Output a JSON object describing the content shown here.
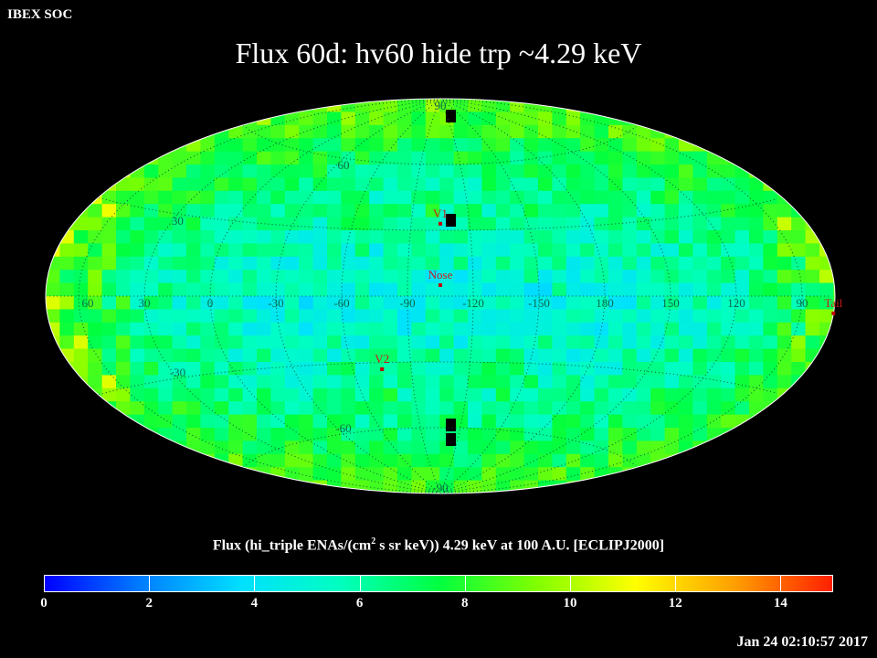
{
  "header": {
    "label": "IBEX SOC"
  },
  "map": {
    "title": "Flux   60d: hv60 hide trp ~4.29 keV",
    "projection": "aitoff",
    "lon_labels": [
      "60",
      "30",
      "0",
      "-30",
      "-60",
      "-90",
      "-120",
      "-150",
      "180",
      "150",
      "120",
      "90"
    ],
    "lat_labels": [
      "90",
      "60",
      "30",
      "-30",
      "-60",
      "-90"
    ],
    "markers": [
      {
        "label": "V1",
        "lon": -105,
        "lat": 33
      },
      {
        "label": "Nose",
        "lon": -105,
        "lat": 5
      },
      {
        "label": "V2",
        "lon": -75,
        "lat": -33
      },
      {
        "label": "Tail",
        "lon": 75,
        "lat": -5
      }
    ]
  },
  "colorbar": {
    "title_pre": "Flux (hi_triple ENAs/(cm",
    "title_sup": "2",
    "title_post": " s sr keV))  4.29 keV at 100 A.U. [ECLIPJ2000]",
    "min": 0,
    "max": 15,
    "ticks": [
      "0",
      "2",
      "4",
      "6",
      "8",
      "10",
      "12",
      "14"
    ],
    "colors": [
      "#0000ff",
      "#0080ff",
      "#00e0ff",
      "#00ffc0",
      "#00ff40",
      "#80ff00",
      "#ffff00",
      "#ffa000",
      "#ff2000"
    ]
  },
  "timestamp": "Jan 24 02:10:57 2017"
}
